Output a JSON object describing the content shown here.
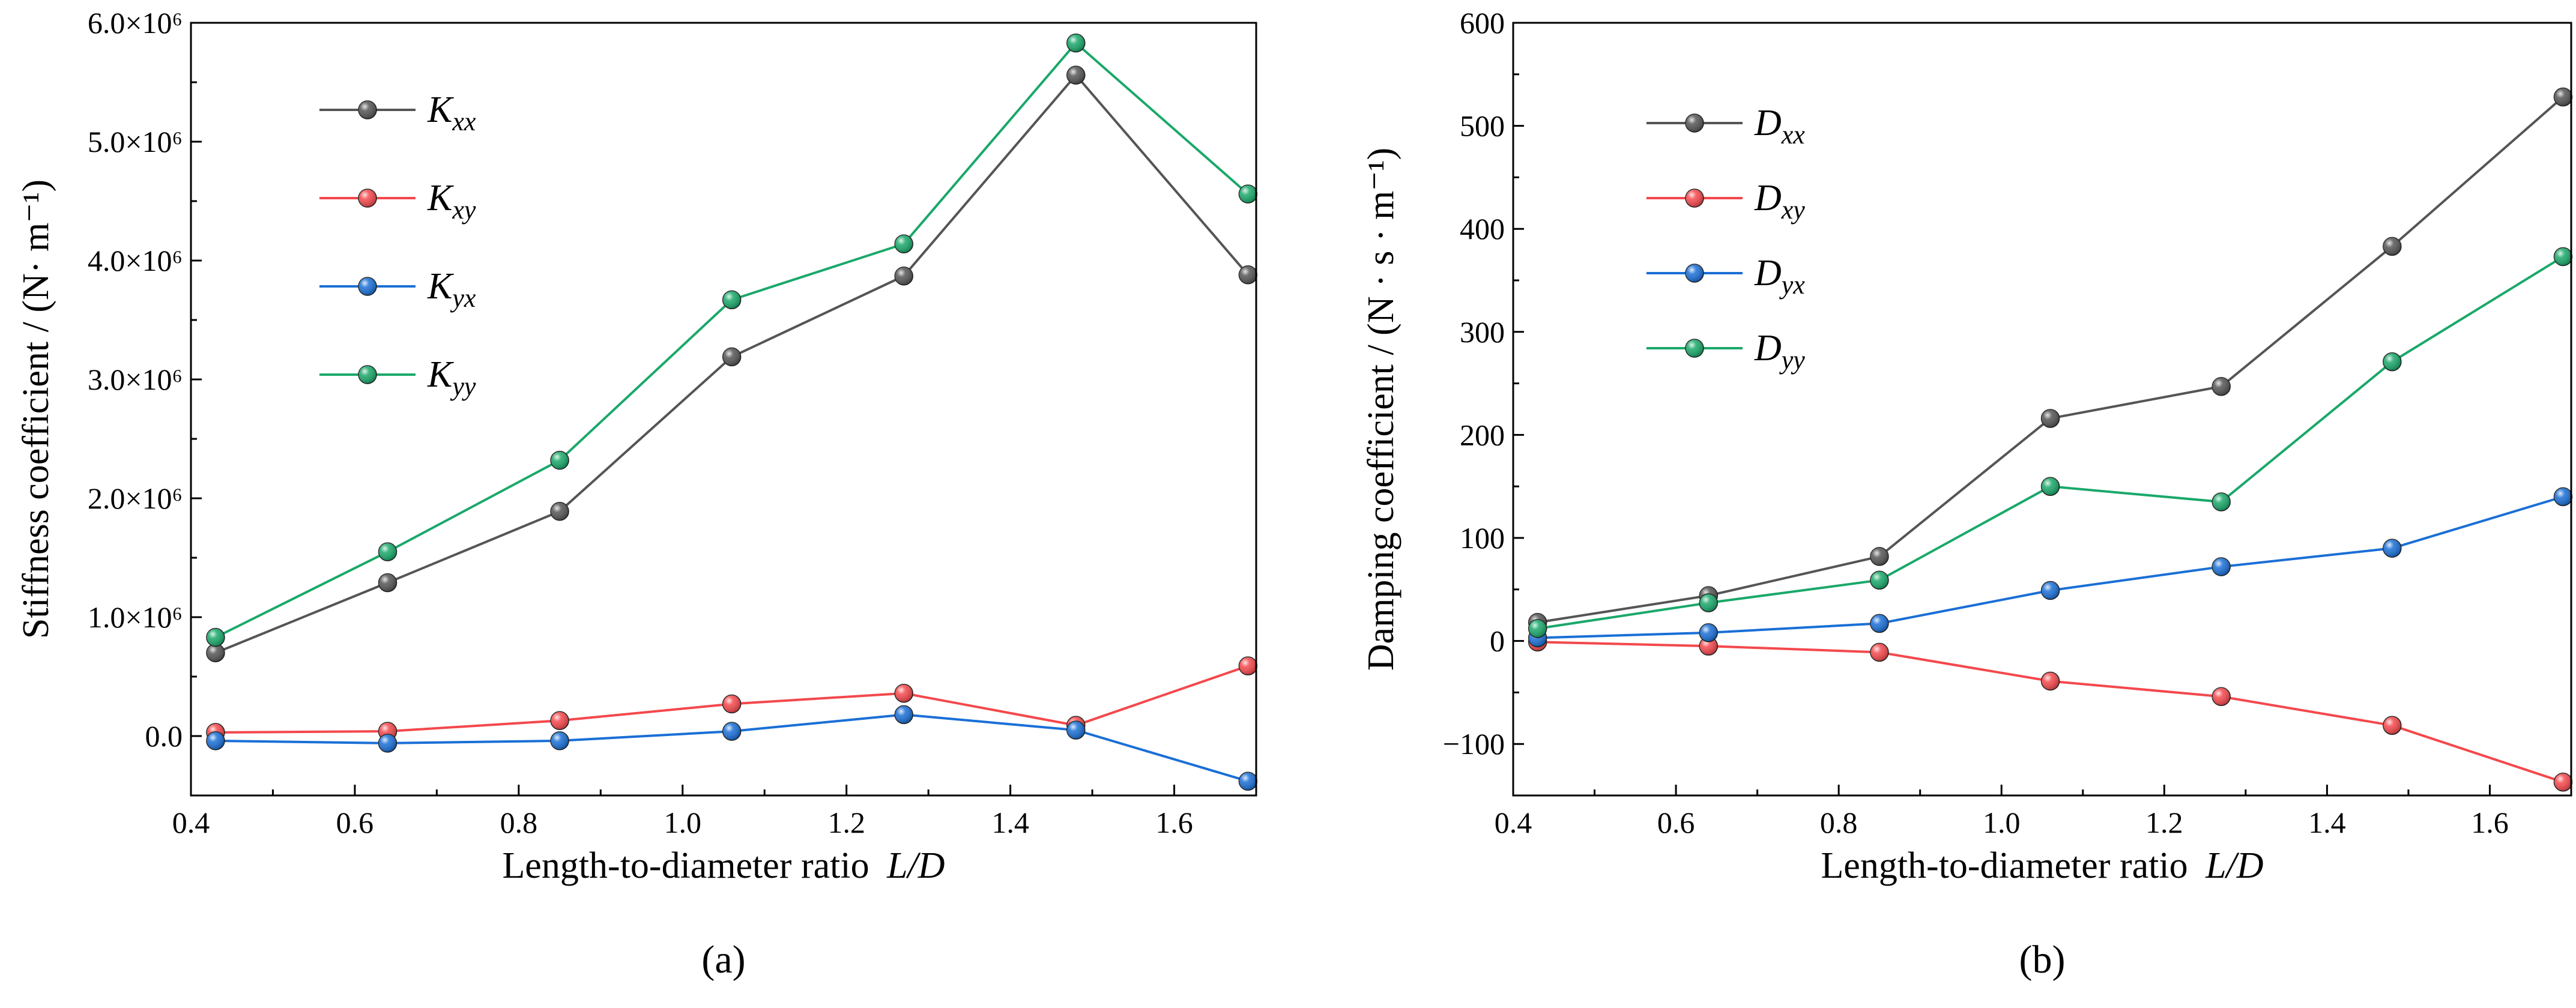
{
  "colors": {
    "xx": "#555555",
    "xy": "#f4484c",
    "yx": "#1a6fd6",
    "yy": "#1aa86a"
  },
  "chart_data": [
    {
      "id": "a",
      "type": "line",
      "panel_label": "(a)",
      "xlabel_text": "Length-to-diameter ratio",
      "xlabel_var": "L/D",
      "ylabel": "Stiffness coefficient / (N· m⁻¹)",
      "xlim": [
        0.4,
        1.7
      ],
      "ylim": [
        -500000,
        6000000
      ],
      "xticks": [
        0.4,
        0.6,
        0.8,
        1.0,
        1.2,
        1.4,
        1.6
      ],
      "xtick_labels": [
        "0.4",
        "0.6",
        "0.8",
        "1.0",
        "1.2",
        "1.4",
        "1.6"
      ],
      "yticks": [
        0,
        1000000,
        2000000,
        3000000,
        4000000,
        5000000,
        6000000
      ],
      "ytick_labels": [
        "0.0",
        "1.0×10⁶",
        "2.0×10⁶",
        "3.0×10⁶",
        "4.0×10⁶",
        "5.0×10⁶",
        "6.0×10⁶"
      ],
      "x": [
        0.43,
        0.64,
        0.85,
        1.06,
        1.27,
        1.48,
        1.69
      ],
      "legend_position": "top-left",
      "series": [
        {
          "key": "xx",
          "name_main": "K",
          "name_sub": "xx",
          "values": [
            700000,
            1290000,
            1890000,
            3190000,
            3870000,
            5560000,
            3880000
          ]
        },
        {
          "key": "xy",
          "name_main": "K",
          "name_sub": "xy",
          "values": [
            30000,
            40000,
            130000,
            270000,
            360000,
            90000,
            590000
          ]
        },
        {
          "key": "yx",
          "name_main": "K",
          "name_sub": "yx",
          "values": [
            -40000,
            -60000,
            -40000,
            40000,
            180000,
            50000,
            -380000
          ]
        },
        {
          "key": "yy",
          "name_main": "K",
          "name_sub": "yy",
          "values": [
            830000,
            1550000,
            2320000,
            3670000,
            4140000,
            5830000,
            4560000
          ]
        }
      ]
    },
    {
      "id": "b",
      "type": "line",
      "panel_label": "(b)",
      "xlabel_text": "Length-to-diameter ratio",
      "xlabel_var": "L/D",
      "ylabel": "Damping coefficient / (N · s · m⁻¹)",
      "xlim": [
        0.4,
        1.7
      ],
      "ylim": [
        -150,
        600
      ],
      "xticks": [
        0.4,
        0.6,
        0.8,
        1.0,
        1.2,
        1.4,
        1.6
      ],
      "xtick_labels": [
        "0.4",
        "0.6",
        "0.8",
        "1.0",
        "1.2",
        "1.4",
        "1.6"
      ],
      "yticks": [
        -100,
        0,
        100,
        200,
        300,
        400,
        500,
        600
      ],
      "ytick_labels": [
        "−100",
        "0",
        "100",
        "200",
        "300",
        "400",
        "500",
        "600"
      ],
      "x": [
        0.43,
        0.64,
        0.85,
        1.06,
        1.27,
        1.48,
        1.69
      ],
      "legend_position": "top-left",
      "series": [
        {
          "key": "xx",
          "name_main": "D",
          "name_sub": "xx",
          "values": [
            18,
            44,
            82,
            216,
            247,
            383,
            528
          ]
        },
        {
          "key": "xy",
          "name_main": "D",
          "name_sub": "xy",
          "values": [
            -1,
            -5,
            -11,
            -39,
            -54,
            -82,
            -137
          ]
        },
        {
          "key": "yx",
          "name_main": "D",
          "name_sub": "yx",
          "values": [
            3,
            8,
            17,
            49,
            72,
            90,
            140
          ]
        },
        {
          "key": "yy",
          "name_main": "D",
          "name_sub": "yy",
          "values": [
            12,
            37,
            59,
            150,
            135,
            271,
            373
          ]
        }
      ]
    }
  ]
}
